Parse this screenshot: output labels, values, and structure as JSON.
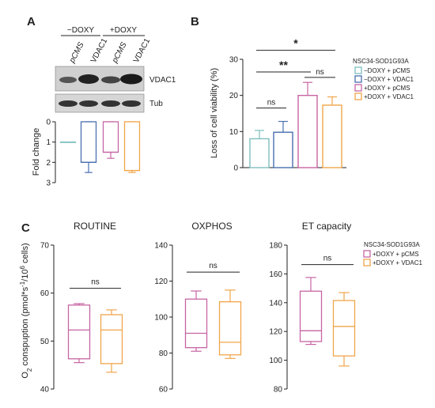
{
  "panels": {
    "a": "A",
    "b": "B",
    "c": "C"
  },
  "western_blot": {
    "condition_labels": [
      "−DOXY",
      "+DOXY"
    ],
    "lane_labels": [
      "pCMS",
      "VDAC1",
      "pCMS",
      "VDAC1"
    ],
    "band_labels": [
      "VDAC1",
      "Tub"
    ],
    "fold_axis_label": "Fold change",
    "fold_ticks": [
      "0",
      "1",
      "2",
      "3"
    ]
  },
  "colors": {
    "minus_pcms": "#7fbfbf",
    "minus_vdac1": "#4a6fb0",
    "plus_pcms": "#c765a3",
    "plus_vdac1": "#f0a54a"
  },
  "legend_b": {
    "title": "NSC34-SOD1G93A",
    "items": [
      "−DOXY + pCMS",
      "−DOXY + VDAC1",
      "+DOXY + pCMS",
      "+DOXY + VDAC1"
    ]
  },
  "legend_c": {
    "title": "NSC34-SOD1G93A",
    "items": [
      "+DOXY + pCMS",
      "+DOXY + VDAC1"
    ]
  },
  "chart_data": [
    {
      "type": "box",
      "panel": "A",
      "ylabel": "Fold change",
      "ylim": [
        0,
        3
      ],
      "y_inverted": true,
      "yticks": [
        0,
        1,
        2,
        3
      ],
      "boxes": [
        {
          "name": "−DOXY + pCMS",
          "min": 1.0,
          "q1": 1.0,
          "median": 1.0,
          "q3": 1.0,
          "max": 1.0
        },
        {
          "name": "−DOXY + VDAC1",
          "min": 0.0,
          "q1": 0.0,
          "median": 2.0,
          "q3": 2.0,
          "max": 2.5
        },
        {
          "name": "+DOXY + pCMS",
          "min": 0.0,
          "q1": 0.0,
          "median": 1.5,
          "q3": 1.5,
          "max": 1.8
        },
        {
          "name": "+DOXY + VDAC1",
          "min": 0.0,
          "q1": 0.0,
          "median": 2.4,
          "q3": 2.4,
          "max": 2.5
        }
      ]
    },
    {
      "type": "bar",
      "panel": "B",
      "ylabel": "Loss of cell viability (%)",
      "ylim": [
        0,
        30
      ],
      "yticks": [
        0,
        10,
        20,
        30
      ],
      "categories": [
        "−DOXY + pCMS",
        "−DOXY + VDAC1",
        "+DOXY + pCMS",
        "+DOXY + VDAC1"
      ],
      "values": [
        8.0,
        9.8,
        20.0,
        17.3
      ],
      "errors": [
        2.3,
        3.0,
        3.6,
        2.3
      ],
      "significance": [
        {
          "from": 0,
          "to": 1,
          "label": "ns",
          "y": 16.5
        },
        {
          "from": 2,
          "to": 3,
          "label": "ns",
          "y": 25.0
        },
        {
          "from": 0,
          "to": 2,
          "label": "**",
          "y": 26.5
        },
        {
          "from": 0,
          "to": 3,
          "label": "*",
          "y": 32.5
        }
      ],
      "legend_placement": "right"
    },
    {
      "type": "box",
      "panel": "C",
      "title": "ROUTINE",
      "ylabel": "O2 conspuption (pmol*s-1/10^6 cells)",
      "ylim": [
        40,
        70
      ],
      "yticks": [
        40,
        50,
        60,
        70
      ],
      "boxes": [
        {
          "name": "+DOXY + pCMS",
          "min": 45.5,
          "q1": 46.3,
          "median": 52.3,
          "q3": 57.5,
          "max": 57.8
        },
        {
          "name": "+DOXY + VDAC1",
          "min": 43.5,
          "q1": 45.3,
          "median": 52.3,
          "q3": 55.5,
          "max": 56.5
        }
      ],
      "significance": [
        {
          "from": 0,
          "to": 1,
          "label": "ns",
          "y": 61.0
        }
      ]
    },
    {
      "type": "box",
      "panel": "C",
      "title": "OXPHOS",
      "ylim": [
        60,
        140
      ],
      "yticks": [
        60,
        80,
        100,
        120,
        140
      ],
      "boxes": [
        {
          "name": "+DOXY + pCMS",
          "min": 81.0,
          "q1": 83.0,
          "median": 91.0,
          "q3": 110.0,
          "max": 114.5
        },
        {
          "name": "+DOXY + VDAC1",
          "min": 77.0,
          "q1": 79.0,
          "median": 86.0,
          "q3": 108.5,
          "max": 115.0
        }
      ],
      "significance": [
        {
          "from": 0,
          "to": 1,
          "label": "ns",
          "y": 125.0
        }
      ]
    },
    {
      "type": "box",
      "panel": "C",
      "title": "ET capacity",
      "ylim": [
        80,
        180
      ],
      "yticks": [
        80,
        100,
        120,
        140,
        160,
        180
      ],
      "boxes": [
        {
          "name": "+DOXY + pCMS",
          "min": 111.0,
          "q1": 113.0,
          "median": 120.5,
          "q3": 148.0,
          "max": 157.5
        },
        {
          "name": "+DOXY + VDAC1",
          "min": 96.0,
          "q1": 103.0,
          "median": 123.5,
          "q3": 141.5,
          "max": 147.0
        }
      ],
      "significance": [
        {
          "from": 0,
          "to": 1,
          "label": "ns",
          "y": 166.5
        }
      ],
      "legend_placement": "right"
    }
  ]
}
